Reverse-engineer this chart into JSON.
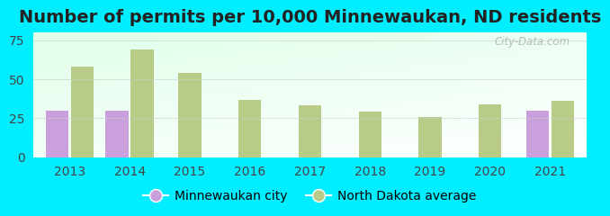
{
  "title_text": "Number of permits per 10,000 Minnewaukan, ND residents",
  "years": [
    2013,
    2014,
    2015,
    2016,
    2017,
    2018,
    2019,
    2020,
    2021
  ],
  "city_values": [
    30,
    30,
    null,
    null,
    null,
    null,
    null,
    null,
    30
  ],
  "nd_values": [
    58,
    69,
    54,
    37,
    33,
    29,
    26,
    34,
    36
  ],
  "city_color": "#c9a0dc",
  "nd_color": "#b8cc88",
  "outer_background": "#00eeff",
  "bar_width": 0.38,
  "ylim": [
    0,
    80
  ],
  "yticks": [
    0,
    25,
    50,
    75
  ],
  "legend_city": "Minnewaukan city",
  "legend_nd": "North Dakota average",
  "watermark": "City-Data.com",
  "title_fontsize": 14,
  "tick_fontsize": 10,
  "legend_fontsize": 10
}
